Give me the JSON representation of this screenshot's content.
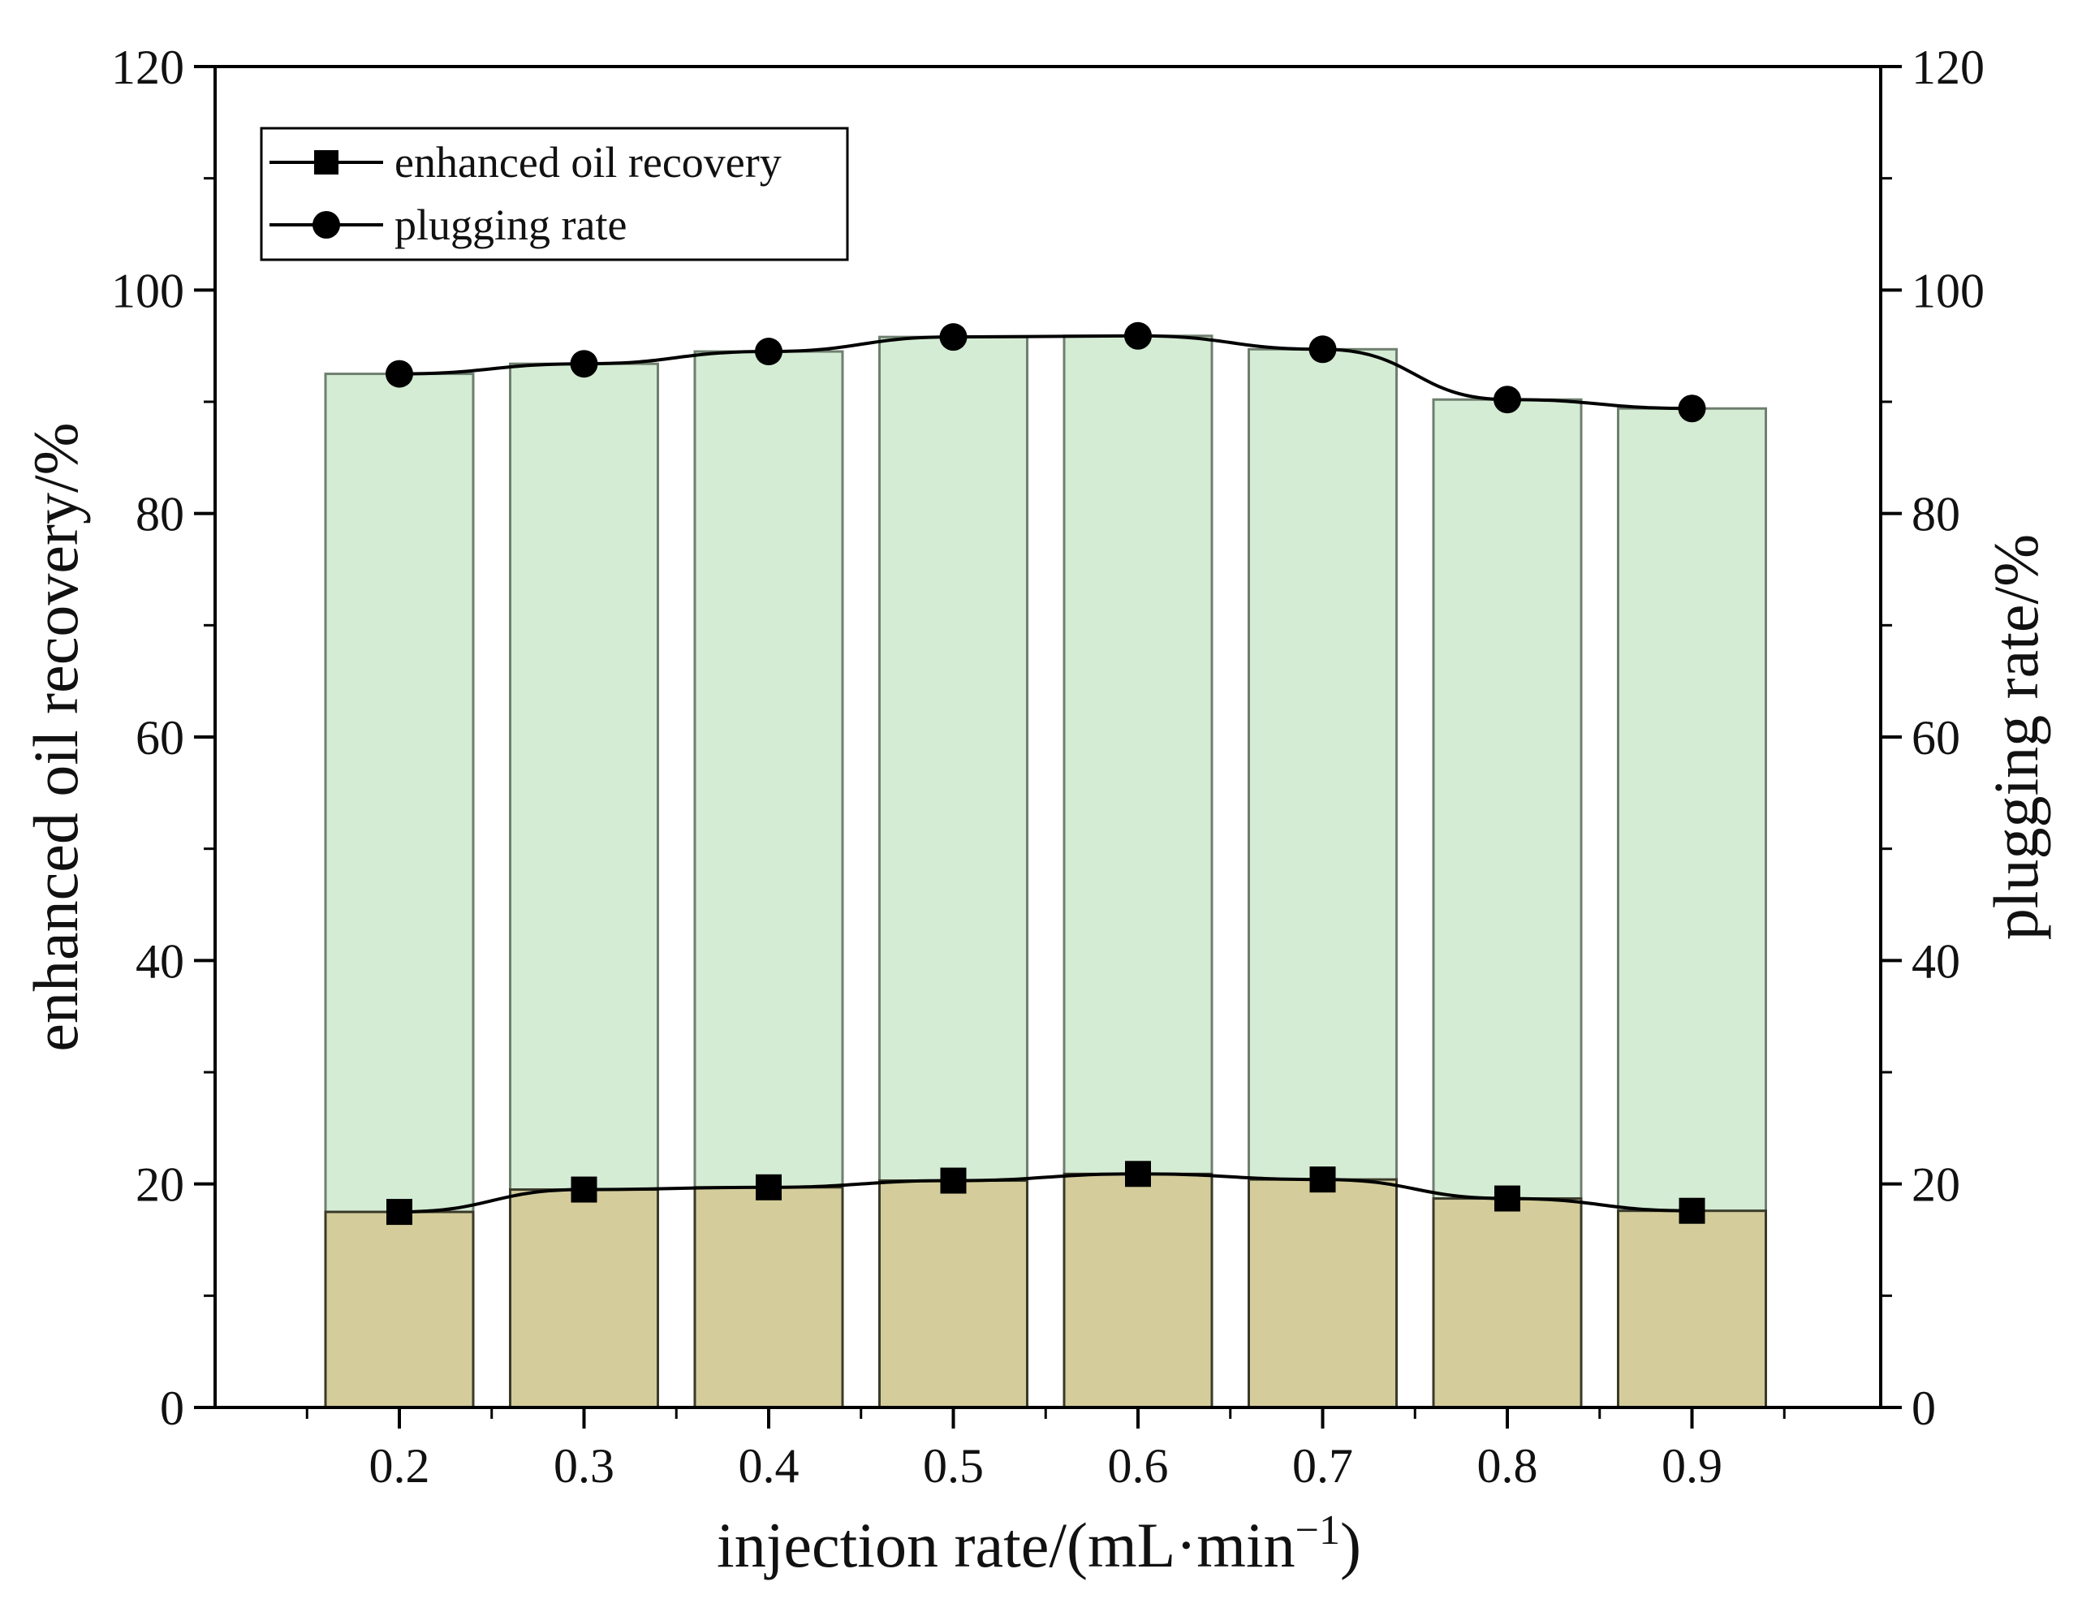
{
  "chart_data": {
    "type": "bar",
    "categories": [
      "0.2",
      "0.3",
      "0.4",
      "0.5",
      "0.6",
      "0.7",
      "0.8",
      "0.9"
    ],
    "series": [
      {
        "name": "enhanced oil recovery",
        "axis": "left",
        "marker": "square",
        "values": [
          17.5,
          19.5,
          19.7,
          20.3,
          20.9,
          20.4,
          18.7,
          17.6
        ]
      },
      {
        "name": "plugging rate",
        "axis": "right",
        "marker": "circle",
        "values": [
          92.5,
          93.4,
          94.5,
          95.8,
          95.9,
          94.7,
          90.2,
          89.4
        ]
      }
    ],
    "title": "",
    "xlabel": "injection rate/(mL·min",
    "xlabel_superscript": "−1",
    "xlabel_suffix": ")",
    "ylabel": "enhanced oil recovery/%",
    "ylabel_right": "plugging rate/%",
    "ylim": [
      0,
      120
    ],
    "ylim_right": [
      0,
      120
    ],
    "yticks": [
      "0",
      "20",
      "40",
      "60",
      "80",
      "100",
      "120"
    ],
    "legend_position": "top-left",
    "grid": false
  },
  "colors": {
    "plugging_bar_fill": "#d5ecd4",
    "plugging_bar_stroke": "#6f7f6f",
    "recovery_bar_fill": "#d4cd9b",
    "recovery_bar_stroke": "#3a3a2a",
    "line": "#000000",
    "axis": "#000000"
  }
}
